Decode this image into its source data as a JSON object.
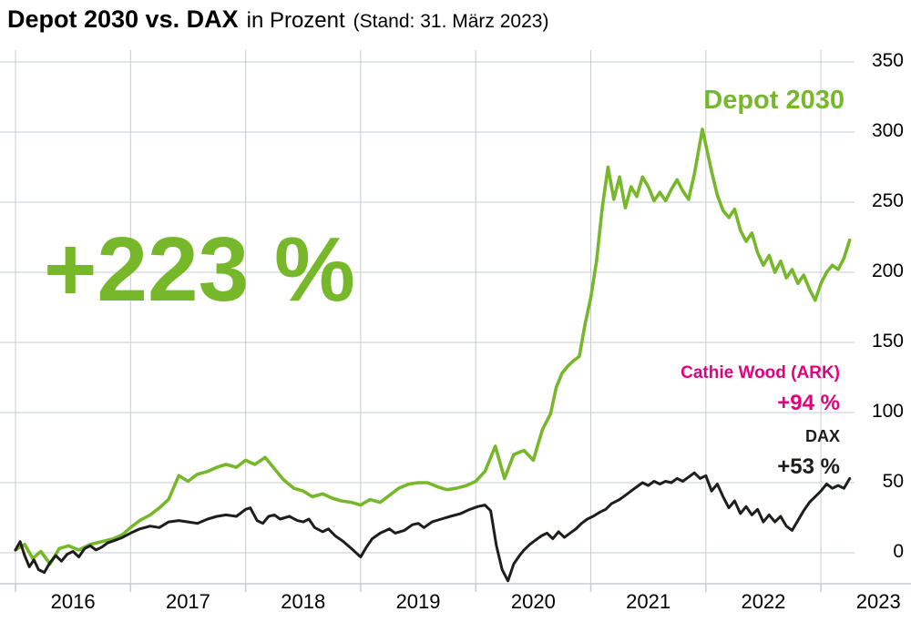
{
  "header": {
    "title": "Depot 2030 vs. DAX",
    "subtitle": "in Prozent",
    "stand": "(Stand: 31. März 2023)"
  },
  "annotations": {
    "depot_total_return": "+223 %",
    "depot_series_label": "Depot 2030",
    "ark_series_label": "Cathie Wood (ARK)",
    "ark_return": "+94 %",
    "dax_series_label": "DAX",
    "dax_return": "+53 %"
  },
  "colors": {
    "depot_green": "#76b82a",
    "ark_magenta": "#e5007d",
    "dax_black": "#1d1d1b",
    "grid": "#c6ccd2"
  },
  "chart_data": {
    "type": "line",
    "title": "Depot 2030 vs. DAX in Prozent (Stand: 31. März 2023)",
    "xlabel": "",
    "ylabel": "Prozent",
    "x_ticks": [
      2016,
      2017,
      2018,
      2019,
      2020,
      2021,
      2022,
      2023
    ],
    "y_ticks": [
      0,
      50,
      100,
      150,
      200,
      250,
      300,
      350
    ],
    "xlim": [
      2016,
      2023.3
    ],
    "ylim": [
      -25,
      355
    ],
    "grid": true,
    "legend_position": "annotations-right",
    "series": [
      {
        "name": "Depot 2030",
        "color": "#76b82a",
        "final_value_pct": 223,
        "points": [
          [
            2016.0,
            2
          ],
          [
            2016.08,
            6
          ],
          [
            2016.15,
            -4
          ],
          [
            2016.22,
            1
          ],
          [
            2016.3,
            -8
          ],
          [
            2016.38,
            3
          ],
          [
            2016.46,
            5
          ],
          [
            2016.55,
            2
          ],
          [
            2016.65,
            6
          ],
          [
            2016.75,
            8
          ],
          [
            2016.85,
            10
          ],
          [
            2016.93,
            13
          ],
          [
            2017.0,
            18
          ],
          [
            2017.08,
            23
          ],
          [
            2017.17,
            27
          ],
          [
            2017.25,
            32
          ],
          [
            2017.33,
            38
          ],
          [
            2017.42,
            55
          ],
          [
            2017.5,
            51
          ],
          [
            2017.58,
            56
          ],
          [
            2017.67,
            58
          ],
          [
            2017.75,
            61
          ],
          [
            2017.83,
            63
          ],
          [
            2017.92,
            61
          ],
          [
            2018.0,
            66
          ],
          [
            2018.08,
            63
          ],
          [
            2018.17,
            68
          ],
          [
            2018.25,
            60
          ],
          [
            2018.33,
            52
          ],
          [
            2018.42,
            46
          ],
          [
            2018.5,
            44
          ],
          [
            2018.58,
            40
          ],
          [
            2018.67,
            42
          ],
          [
            2018.75,
            39
          ],
          [
            2018.83,
            37
          ],
          [
            2018.92,
            36
          ],
          [
            2019.0,
            34
          ],
          [
            2019.08,
            38
          ],
          [
            2019.17,
            36
          ],
          [
            2019.25,
            41
          ],
          [
            2019.33,
            46
          ],
          [
            2019.42,
            49
          ],
          [
            2019.5,
            50
          ],
          [
            2019.58,
            50
          ],
          [
            2019.67,
            47
          ],
          [
            2019.75,
            45
          ],
          [
            2019.83,
            46
          ],
          [
            2019.92,
            48
          ],
          [
            2020.0,
            51
          ],
          [
            2020.08,
            58
          ],
          [
            2020.17,
            76
          ],
          [
            2020.25,
            53
          ],
          [
            2020.33,
            70
          ],
          [
            2020.42,
            73
          ],
          [
            2020.5,
            66
          ],
          [
            2020.58,
            88
          ],
          [
            2020.65,
            99
          ],
          [
            2020.7,
            118
          ],
          [
            2020.75,
            128
          ],
          [
            2020.8,
            133
          ],
          [
            2020.85,
            137
          ],
          [
            2020.9,
            140
          ],
          [
            2020.95,
            163
          ],
          [
            2021.0,
            182
          ],
          [
            2021.05,
            208
          ],
          [
            2021.1,
            246
          ],
          [
            2021.15,
            275
          ],
          [
            2021.2,
            252
          ],
          [
            2021.25,
            268
          ],
          [
            2021.3,
            246
          ],
          [
            2021.35,
            261
          ],
          [
            2021.4,
            254
          ],
          [
            2021.45,
            268
          ],
          [
            2021.5,
            261
          ],
          [
            2021.55,
            251
          ],
          [
            2021.6,
            257
          ],
          [
            2021.65,
            251
          ],
          [
            2021.7,
            259
          ],
          [
            2021.75,
            266
          ],
          [
            2021.8,
            258
          ],
          [
            2021.85,
            252
          ],
          [
            2021.9,
            270
          ],
          [
            2021.97,
            302
          ],
          [
            2022.05,
            272
          ],
          [
            2022.1,
            255
          ],
          [
            2022.15,
            244
          ],
          [
            2022.2,
            239
          ],
          [
            2022.25,
            245
          ],
          [
            2022.3,
            230
          ],
          [
            2022.35,
            222
          ],
          [
            2022.4,
            228
          ],
          [
            2022.45,
            214
          ],
          [
            2022.5,
            205
          ],
          [
            2022.55,
            212
          ],
          [
            2022.6,
            200
          ],
          [
            2022.65,
            208
          ],
          [
            2022.7,
            196
          ],
          [
            2022.75,
            202
          ],
          [
            2022.8,
            192
          ],
          [
            2022.85,
            198
          ],
          [
            2022.9,
            188
          ],
          [
            2022.95,
            180
          ],
          [
            2023.0,
            192
          ],
          [
            2023.05,
            200
          ],
          [
            2023.1,
            205
          ],
          [
            2023.15,
            202
          ],
          [
            2023.2,
            210
          ],
          [
            2023.25,
            223
          ]
        ]
      },
      {
        "name": "DAX",
        "color": "#1d1d1b",
        "final_value_pct": 53,
        "points": [
          [
            2016.0,
            2
          ],
          [
            2016.04,
            8
          ],
          [
            2016.08,
            -2
          ],
          [
            2016.12,
            -10
          ],
          [
            2016.16,
            -5
          ],
          [
            2016.2,
            -12
          ],
          [
            2016.25,
            -14
          ],
          [
            2016.3,
            -7
          ],
          [
            2016.35,
            -2
          ],
          [
            2016.4,
            -6
          ],
          [
            2016.45,
            -1
          ],
          [
            2016.5,
            1
          ],
          [
            2016.55,
            -3
          ],
          [
            2016.6,
            3
          ],
          [
            2016.65,
            5
          ],
          [
            2016.7,
            2
          ],
          [
            2016.75,
            4
          ],
          [
            2016.8,
            7
          ],
          [
            2016.87,
            9
          ],
          [
            2016.93,
            11
          ],
          [
            2017.0,
            14
          ],
          [
            2017.08,
            17
          ],
          [
            2017.17,
            19
          ],
          [
            2017.25,
            18
          ],
          [
            2017.33,
            22
          ],
          [
            2017.42,
            23
          ],
          [
            2017.5,
            22
          ],
          [
            2017.58,
            21
          ],
          [
            2017.67,
            24
          ],
          [
            2017.75,
            26
          ],
          [
            2017.83,
            27
          ],
          [
            2017.92,
            26
          ],
          [
            2018.0,
            31
          ],
          [
            2018.04,
            32
          ],
          [
            2018.1,
            23
          ],
          [
            2018.15,
            21
          ],
          [
            2018.2,
            26
          ],
          [
            2018.25,
            27
          ],
          [
            2018.3,
            24
          ],
          [
            2018.38,
            26
          ],
          [
            2018.45,
            23
          ],
          [
            2018.5,
            22
          ],
          [
            2018.55,
            24
          ],
          [
            2018.6,
            18
          ],
          [
            2018.67,
            15
          ],
          [
            2018.72,
            17
          ],
          [
            2018.78,
            12
          ],
          [
            2018.85,
            8
          ],
          [
            2018.92,
            3
          ],
          [
            2019.0,
            -3
          ],
          [
            2019.05,
            4
          ],
          [
            2019.1,
            10
          ],
          [
            2019.17,
            14
          ],
          [
            2019.25,
            17
          ],
          [
            2019.3,
            14
          ],
          [
            2019.38,
            16
          ],
          [
            2019.45,
            20
          ],
          [
            2019.5,
            21
          ],
          [
            2019.55,
            18
          ],
          [
            2019.62,
            22
          ],
          [
            2019.7,
            24
          ],
          [
            2019.78,
            26
          ],
          [
            2019.87,
            28
          ],
          [
            2019.95,
            31
          ],
          [
            2020.02,
            33
          ],
          [
            2020.08,
            34
          ],
          [
            2020.13,
            30
          ],
          [
            2020.18,
            5
          ],
          [
            2020.23,
            -12
          ],
          [
            2020.28,
            -20
          ],
          [
            2020.33,
            -8
          ],
          [
            2020.38,
            -2
          ],
          [
            2020.42,
            2
          ],
          [
            2020.47,
            6
          ],
          [
            2020.52,
            9
          ],
          [
            2020.57,
            12
          ],
          [
            2020.62,
            14
          ],
          [
            2020.67,
            10
          ],
          [
            2020.72,
            15
          ],
          [
            2020.77,
            11
          ],
          [
            2020.82,
            14
          ],
          [
            2020.87,
            17
          ],
          [
            2020.92,
            21
          ],
          [
            2020.97,
            24
          ],
          [
            2021.02,
            26
          ],
          [
            2021.08,
            29
          ],
          [
            2021.13,
            31
          ],
          [
            2021.18,
            35
          ],
          [
            2021.25,
            38
          ],
          [
            2021.3,
            41
          ],
          [
            2021.35,
            44
          ],
          [
            2021.4,
            47
          ],
          [
            2021.45,
            50
          ],
          [
            2021.5,
            48
          ],
          [
            2021.55,
            51
          ],
          [
            2021.6,
            49
          ],
          [
            2021.65,
            51
          ],
          [
            2021.7,
            50
          ],
          [
            2021.75,
            53
          ],
          [
            2021.8,
            51
          ],
          [
            2021.85,
            54
          ],
          [
            2021.9,
            57
          ],
          [
            2021.95,
            53
          ],
          [
            2022.0,
            55
          ],
          [
            2022.05,
            44
          ],
          [
            2022.1,
            49
          ],
          [
            2022.15,
            40
          ],
          [
            2022.2,
            32
          ],
          [
            2022.25,
            37
          ],
          [
            2022.3,
            28
          ],
          [
            2022.35,
            33
          ],
          [
            2022.4,
            27
          ],
          [
            2022.45,
            31
          ],
          [
            2022.5,
            22
          ],
          [
            2022.55,
            27
          ],
          [
            2022.6,
            22
          ],
          [
            2022.65,
            26
          ],
          [
            2022.7,
            19
          ],
          [
            2022.75,
            16
          ],
          [
            2022.8,
            23
          ],
          [
            2022.85,
            30
          ],
          [
            2022.9,
            36
          ],
          [
            2022.95,
            40
          ],
          [
            2023.0,
            44
          ],
          [
            2023.05,
            49
          ],
          [
            2023.1,
            46
          ],
          [
            2023.15,
            48
          ],
          [
            2023.2,
            46
          ],
          [
            2023.25,
            53
          ]
        ]
      },
      {
        "name": "Cathie Wood (ARK)",
        "color": "#e5007d",
        "final_value_pct": 94,
        "points": []
      }
    ]
  }
}
